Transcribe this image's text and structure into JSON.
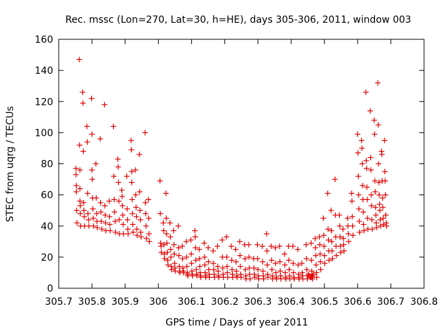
{
  "chart_data": {
    "type": "scatter",
    "title": "Rec. mssc (Lon=270, Lat=30, h=HE), days 305-306, 2011, window 003",
    "xlabel": "GPS time / Days of year 2011",
    "ylabel": "STEC from uqrg / TECUs",
    "xlim": [
      305.7,
      306.8
    ],
    "ylim": [
      0,
      160
    ],
    "xticks": [
      "305.7",
      "305.8",
      "305.9",
      "306",
      "306.1",
      "306.2",
      "306.3",
      "306.4",
      "306.5",
      "306.6",
      "306.7",
      "306.8"
    ],
    "yticks": [
      "0",
      "20",
      "40",
      "60",
      "80",
      "100",
      "120",
      "140",
      "160"
    ],
    "grid": false,
    "marker": "plus",
    "color": "#e00000",
    "points": [
      [
        305.752,
        77
      ],
      [
        305.752,
        73
      ],
      [
        305.753,
        66
      ],
      [
        305.753,
        62
      ],
      [
        305.754,
        50
      ],
      [
        305.755,
        42
      ],
      [
        305.762,
        147
      ],
      [
        305.763,
        92
      ],
      [
        305.764,
        76
      ],
      [
        305.764,
        64
      ],
      [
        305.764,
        56
      ],
      [
        305.765,
        53
      ],
      [
        305.765,
        48
      ],
      [
        305.766,
        40
      ],
      [
        305.772,
        126
      ],
      [
        305.773,
        119
      ],
      [
        305.774,
        88
      ],
      [
        305.775,
        55
      ],
      [
        305.776,
        50
      ],
      [
        305.777,
        46
      ],
      [
        305.778,
        40
      ],
      [
        305.785,
        104
      ],
      [
        305.786,
        94
      ],
      [
        305.787,
        61
      ],
      [
        305.788,
        48
      ],
      [
        305.79,
        44
      ],
      [
        305.791,
        40
      ],
      [
        305.799,
        122
      ],
      [
        305.8,
        99
      ],
      [
        305.8,
        76
      ],
      [
        305.801,
        70
      ],
      [
        305.802,
        58
      ],
      [
        305.803,
        51
      ],
      [
        305.804,
        45
      ],
      [
        305.805,
        40
      ],
      [
        305.812,
        80
      ],
      [
        305.813,
        58
      ],
      [
        305.814,
        48
      ],
      [
        305.815,
        43
      ],
      [
        305.816,
        39
      ],
      [
        305.825,
        96
      ],
      [
        305.826,
        55
      ],
      [
        305.827,
        49
      ],
      [
        305.828,
        43
      ],
      [
        305.83,
        38
      ],
      [
        305.838,
        118
      ],
      [
        305.839,
        53
      ],
      [
        305.84,
        47
      ],
      [
        305.841,
        42
      ],
      [
        305.842,
        37
      ],
      [
        305.852,
        56
      ],
      [
        305.853,
        46
      ],
      [
        305.854,
        41
      ],
      [
        305.855,
        37
      ],
      [
        305.865,
        104
      ],
      [
        305.866,
        72
      ],
      [
        305.867,
        57
      ],
      [
        305.868,
        49
      ],
      [
        305.87,
        43
      ],
      [
        305.871,
        36
      ],
      [
        305.878,
        83
      ],
      [
        305.879,
        78
      ],
      [
        305.88,
        68
      ],
      [
        305.881,
        56
      ],
      [
        305.882,
        44
      ],
      [
        305.883,
        35
      ],
      [
        305.89,
        63
      ],
      [
        305.891,
        59
      ],
      [
        305.892,
        53
      ],
      [
        305.893,
        47
      ],
      [
        305.894,
        41
      ],
      [
        305.895,
        35
      ],
      [
        305.905,
        72
      ],
      [
        305.906,
        51
      ],
      [
        305.907,
        44
      ],
      [
        305.908,
        38
      ],
      [
        305.909,
        35
      ],
      [
        305.918,
        95
      ],
      [
        305.919,
        89
      ],
      [
        305.92,
        75
      ],
      [
        305.92,
        68
      ],
      [
        305.921,
        57
      ],
      [
        305.922,
        48
      ],
      [
        305.923,
        41
      ],
      [
        305.924,
        36
      ],
      [
        305.931,
        76
      ],
      [
        305.932,
        60
      ],
      [
        305.933,
        52
      ],
      [
        305.934,
        46
      ],
      [
        305.935,
        38
      ],
      [
        305.936,
        34
      ],
      [
        305.943,
        86
      ],
      [
        305.944,
        62
      ],
      [
        305.945,
        50
      ],
      [
        305.946,
        44
      ],
      [
        305.947,
        36
      ],
      [
        305.948,
        33
      ],
      [
        305.96,
        100
      ],
      [
        305.961,
        55
      ],
      [
        305.962,
        48
      ],
      [
        305.963,
        40
      ],
      [
        305.964,
        32
      ],
      [
        305.97,
        57
      ],
      [
        305.971,
        45
      ],
      [
        305.972,
        35
      ],
      [
        305.973,
        30
      ],
      [
        306.005,
        69
      ],
      [
        306.006,
        48
      ],
      [
        306.007,
        29
      ],
      [
        306.008,
        27
      ],
      [
        306.009,
        23
      ],
      [
        306.015,
        42
      ],
      [
        306.016,
        37
      ],
      [
        306.017,
        28
      ],
      [
        306.018,
        22
      ],
      [
        306.019,
        19
      ],
      [
        306.023,
        61
      ],
      [
        306.024,
        45
      ],
      [
        306.025,
        35
      ],
      [
        306.026,
        29
      ],
      [
        306.027,
        23
      ],
      [
        306.028,
        18
      ],
      [
        306.029,
        15
      ],
      [
        306.035,
        42
      ],
      [
        306.036,
        33
      ],
      [
        306.037,
        25
      ],
      [
        306.038,
        20
      ],
      [
        306.039,
        14
      ],
      [
        306.04,
        12
      ],
      [
        306.046,
        37
      ],
      [
        306.047,
        28
      ],
      [
        306.048,
        22
      ],
      [
        306.049,
        16
      ],
      [
        306.05,
        13
      ],
      [
        306.051,
        11
      ],
      [
        306.06,
        40
      ],
      [
        306.061,
        26
      ],
      [
        306.062,
        21
      ],
      [
        306.063,
        14
      ],
      [
        306.064,
        11
      ],
      [
        306.065,
        10
      ],
      [
        306.072,
        27
      ],
      [
        306.073,
        19
      ],
      [
        306.074,
        13
      ],
      [
        306.075,
        11
      ],
      [
        306.076,
        10
      ],
      [
        306.084,
        30
      ],
      [
        306.085,
        20
      ],
      [
        306.086,
        14
      ],
      [
        306.087,
        10
      ],
      [
        306.088,
        9
      ],
      [
        306.089,
        8
      ],
      [
        306.098,
        31
      ],
      [
        306.099,
        22
      ],
      [
        306.1,
        16
      ],
      [
        306.101,
        11
      ],
      [
        306.102,
        9
      ],
      [
        306.103,
        8
      ],
      [
        306.11,
        37
      ],
      [
        306.111,
        33
      ],
      [
        306.112,
        26
      ],
      [
        306.113,
        18
      ],
      [
        306.114,
        12
      ],
      [
        306.115,
        9
      ],
      [
        306.116,
        8
      ],
      [
        306.123,
        25
      ],
      [
        306.124,
        19
      ],
      [
        306.125,
        14
      ],
      [
        306.126,
        10
      ],
      [
        306.127,
        8
      ],
      [
        306.128,
        7
      ],
      [
        306.138,
        29
      ],
      [
        306.139,
        20
      ],
      [
        306.14,
        15
      ],
      [
        306.141,
        10
      ],
      [
        306.142,
        8
      ],
      [
        306.143,
        7
      ],
      [
        306.15,
        26
      ],
      [
        306.151,
        17
      ],
      [
        306.152,
        12
      ],
      [
        306.153,
        9
      ],
      [
        306.154,
        7
      ],
      [
        306.165,
        24
      ],
      [
        306.166,
        16
      ],
      [
        306.167,
        12
      ],
      [
        306.168,
        9
      ],
      [
        306.169,
        7
      ],
      [
        306.178,
        27
      ],
      [
        306.179,
        14
      ],
      [
        306.18,
        11
      ],
      [
        306.181,
        8
      ],
      [
        306.182,
        7
      ],
      [
        306.192,
        31
      ],
      [
        306.193,
        20
      ],
      [
        306.194,
        13
      ],
      [
        306.195,
        9
      ],
      [
        306.196,
        7
      ],
      [
        306.205,
        33
      ],
      [
        306.206,
        20
      ],
      [
        306.207,
        14
      ],
      [
        306.208,
        10
      ],
      [
        306.209,
        7
      ],
      [
        306.22,
        27
      ],
      [
        306.221,
        18
      ],
      [
        306.222,
        12
      ],
      [
        306.223,
        9
      ],
      [
        306.224,
        7
      ],
      [
        306.233,
        25
      ],
      [
        306.234,
        17
      ],
      [
        306.235,
        11
      ],
      [
        306.236,
        8
      ],
      [
        306.237,
        7
      ],
      [
        306.245,
        30
      ],
      [
        306.246,
        21
      ],
      [
        306.247,
        14
      ],
      [
        306.248,
        9
      ],
      [
        306.249,
        7
      ],
      [
        306.26,
        28
      ],
      [
        306.261,
        19
      ],
      [
        306.262,
        12
      ],
      [
        306.263,
        8
      ],
      [
        306.264,
        6
      ],
      [
        306.272,
        28
      ],
      [
        306.273,
        20
      ],
      [
        306.274,
        13
      ],
      [
        306.275,
        9
      ],
      [
        306.276,
        6
      ],
      [
        306.287,
        19
      ],
      [
        306.288,
        13
      ],
      [
        306.289,
        9
      ],
      [
        306.29,
        7
      ],
      [
        306.298,
        28
      ],
      [
        306.299,
        19
      ],
      [
        306.3,
        12
      ],
      [
        306.301,
        8
      ],
      [
        306.302,
        6
      ],
      [
        306.313,
        27
      ],
      [
        306.314,
        17
      ],
      [
        306.315,
        11
      ],
      [
        306.316,
        8
      ],
      [
        306.317,
        6
      ],
      [
        306.326,
        35
      ],
      [
        306.327,
        24
      ],
      [
        306.328,
        15
      ],
      [
        306.329,
        9
      ],
      [
        306.33,
        7
      ],
      [
        306.34,
        27
      ],
      [
        306.341,
        18
      ],
      [
        306.342,
        12
      ],
      [
        306.343,
        8
      ],
      [
        306.344,
        6
      ],
      [
        306.352,
        26
      ],
      [
        306.353,
        16
      ],
      [
        306.354,
        10
      ],
      [
        306.355,
        7
      ],
      [
        306.356,
        6
      ],
      [
        306.365,
        27
      ],
      [
        306.366,
        17
      ],
      [
        306.367,
        11
      ],
      [
        306.368,
        8
      ],
      [
        306.369,
        6
      ],
      [
        306.38,
        22
      ],
      [
        306.381,
        15
      ],
      [
        306.382,
        10
      ],
      [
        306.383,
        7
      ],
      [
        306.384,
        6
      ],
      [
        306.392,
        27
      ],
      [
        306.393,
        18
      ],
      [
        306.394,
        12
      ],
      [
        306.395,
        8
      ],
      [
        306.396,
        6
      ],
      [
        306.405,
        27
      ],
      [
        306.406,
        16
      ],
      [
        306.407,
        10
      ],
      [
        306.408,
        7
      ],
      [
        306.409,
        6
      ],
      [
        306.42,
        25
      ],
      [
        306.421,
        15
      ],
      [
        306.422,
        9
      ],
      [
        306.423,
        7
      ],
      [
        306.424,
        6
      ],
      [
        306.432,
        16
      ],
      [
        306.433,
        10
      ],
      [
        306.434,
        8
      ],
      [
        306.435,
        6
      ],
      [
        306.445,
        28
      ],
      [
        306.446,
        19
      ],
      [
        306.447,
        12
      ],
      [
        306.448,
        8
      ],
      [
        306.449,
        6
      ],
      [
        306.452,
        9
      ],
      [
        306.455,
        8
      ],
      [
        306.458,
        7
      ],
      [
        306.461,
        7
      ],
      [
        306.464,
        8
      ],
      [
        306.467,
        9
      ],
      [
        306.46,
        29
      ],
      [
        306.461,
        18
      ],
      [
        306.462,
        11
      ],
      [
        306.463,
        8
      ],
      [
        306.464,
        6
      ],
      [
        306.472,
        32
      ],
      [
        306.473,
        26
      ],
      [
        306.474,
        21
      ],
      [
        306.475,
        15
      ],
      [
        306.476,
        10
      ],
      [
        306.477,
        7
      ],
      [
        306.485,
        33
      ],
      [
        306.486,
        28
      ],
      [
        306.487,
        22
      ],
      [
        306.488,
        17
      ],
      [
        306.489,
        12
      ],
      [
        306.497,
        45
      ],
      [
        306.498,
        34
      ],
      [
        306.499,
        27
      ],
      [
        306.5,
        21
      ],
      [
        306.501,
        16
      ],
      [
        306.51,
        61
      ],
      [
        306.511,
        38
      ],
      [
        306.512,
        31
      ],
      [
        306.513,
        24
      ],
      [
        306.514,
        18
      ],
      [
        306.52,
        50
      ],
      [
        306.521,
        37
      ],
      [
        306.522,
        30
      ],
      [
        306.523,
        24
      ],
      [
        306.524,
        19
      ],
      [
        306.532,
        70
      ],
      [
        306.533,
        47
      ],
      [
        306.534,
        33
      ],
      [
        306.535,
        27
      ],
      [
        306.536,
        21
      ],
      [
        306.545,
        47
      ],
      [
        306.546,
        40
      ],
      [
        306.547,
        33
      ],
      [
        306.548,
        27
      ],
      [
        306.549,
        23
      ],
      [
        306.556,
        38
      ],
      [
        306.557,
        32
      ],
      [
        306.558,
        28
      ],
      [
        306.559,
        24
      ],
      [
        306.57,
        45
      ],
      [
        306.571,
        40
      ],
      [
        306.572,
        35
      ],
      [
        306.573,
        30
      ],
      [
        306.582,
        61
      ],
      [
        306.583,
        56
      ],
      [
        306.584,
        46
      ],
      [
        306.585,
        40
      ],
      [
        306.586,
        34
      ],
      [
        306.6,
        99
      ],
      [
        306.601,
        87
      ],
      [
        306.602,
        72
      ],
      [
        306.603,
        60
      ],
      [
        306.604,
        51
      ],
      [
        306.605,
        43
      ],
      [
        306.606,
        36
      ],
      [
        306.612,
        95
      ],
      [
        306.613,
        90
      ],
      [
        306.614,
        80
      ],
      [
        306.615,
        66
      ],
      [
        306.616,
        57
      ],
      [
        306.617,
        49
      ],
      [
        306.618,
        41
      ],
      [
        306.619,
        37
      ],
      [
        306.625,
        126
      ],
      [
        306.626,
        82
      ],
      [
        306.627,
        77
      ],
      [
        306.628,
        65
      ],
      [
        306.629,
        57
      ],
      [
        306.63,
        45
      ],
      [
        306.631,
        38
      ],
      [
        306.638,
        114
      ],
      [
        306.639,
        84
      ],
      [
        306.64,
        76
      ],
      [
        306.641,
        60
      ],
      [
        306.642,
        53
      ],
      [
        306.643,
        44
      ],
      [
        306.644,
        38
      ],
      [
        306.65,
        108
      ],
      [
        306.651,
        99
      ],
      [
        306.652,
        69
      ],
      [
        306.653,
        62
      ],
      [
        306.654,
        52
      ],
      [
        306.655,
        47
      ],
      [
        306.656,
        42
      ],
      [
        306.657,
        39
      ],
      [
        306.661,
        132
      ],
      [
        306.662,
        105
      ],
      [
        306.663,
        80
      ],
      [
        306.664,
        68
      ],
      [
        306.665,
        60
      ],
      [
        306.666,
        54
      ],
      [
        306.667,
        50
      ],
      [
        306.668,
        44
      ],
      [
        306.669,
        40
      ],
      [
        306.672,
        88
      ],
      [
        306.673,
        86
      ],
      [
        306.674,
        69
      ],
      [
        306.675,
        58
      ],
      [
        306.676,
        52
      ],
      [
        306.677,
        45
      ],
      [
        306.678,
        41
      ],
      [
        306.681,
        95
      ],
      [
        306.682,
        75
      ],
      [
        306.683,
        69
      ],
      [
        306.684,
        60
      ],
      [
        306.685,
        47
      ],
      [
        306.686,
        42
      ],
      [
        306.687,
        40
      ]
    ]
  }
}
